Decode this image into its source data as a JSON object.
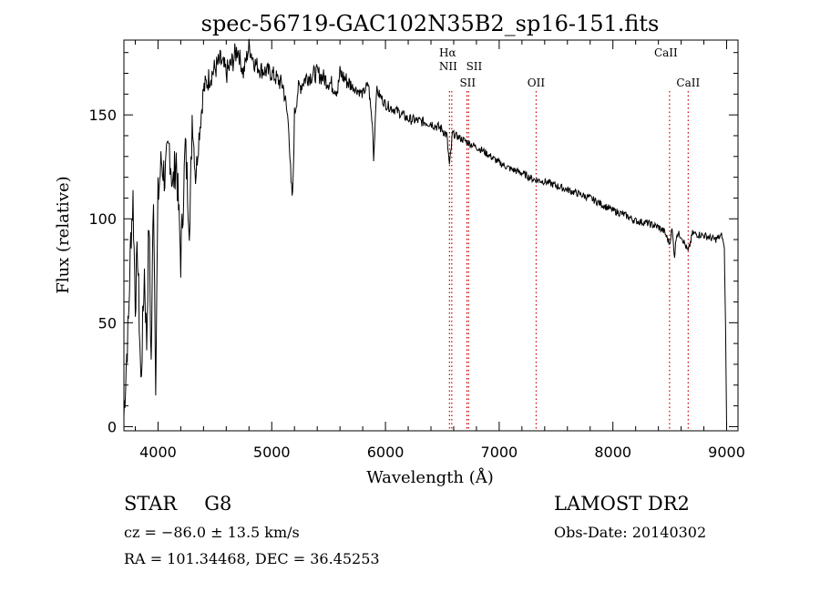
{
  "chart_data": {
    "type": "line",
    "title": "spec-56719-GAC102N35B2_sp16-151.fits",
    "xlabel": "Wavelength (Å)",
    "ylabel": "Flux (relative)",
    "xlim": [
      3700,
      9100
    ],
    "ylim": [
      -2,
      186
    ],
    "xticks": [
      4000,
      5000,
      6000,
      7000,
      8000,
      9000
    ],
    "yticks": [
      0,
      50,
      100,
      150
    ],
    "x_minor_step": 200,
    "y_minor_step": 10,
    "grid": false,
    "line_color": "#000000",
    "marker_color": "#cc0000",
    "line_markers": [
      {
        "label": "Hα",
        "wavelength": 6563
      },
      {
        "label": "NII",
        "wavelength": 6583
      },
      {
        "label": "SII",
        "wavelength": 6716
      },
      {
        "label": "SII",
        "wavelength": 6731
      },
      {
        "label": "OII",
        "wavelength": 7325
      },
      {
        "label": "CaII",
        "wavelength": 8498
      },
      {
        "label": "CaII",
        "wavelength": 8662
      }
    ],
    "series": [
      {
        "x": [
          3700,
          3720,
          3740,
          3760,
          3780,
          3800,
          3820,
          3850,
          3880,
          3900,
          3920,
          3940,
          3960,
          3980,
          4000,
          4030,
          4060,
          4100,
          4130,
          4160,
          4200,
          4240,
          4280,
          4300,
          4330,
          4360,
          4400,
          4450,
          4500,
          4550,
          4600,
          4650,
          4700,
          4750,
          4800,
          4850,
          4900,
          5000,
          5100,
          5150,
          5170,
          5184,
          5200,
          5230,
          5300,
          5400,
          5500,
          5580,
          5600,
          5700,
          5800,
          5850,
          5890,
          5896,
          5920,
          6000,
          6100,
          6200,
          6300,
          6400,
          6500,
          6540,
          6563,
          6590,
          6650,
          6750,
          6850,
          7000,
          7100,
          7200,
          7300,
          7400,
          7500,
          7600,
          7700,
          7800,
          7900,
          8000,
          8100,
          8200,
          8300,
          8400,
          8450,
          8498,
          8520,
          8542,
          8560,
          8600,
          8662,
          8700,
          8800,
          8900,
          8960,
          8980,
          8990,
          9000
        ],
        "y": [
          5,
          30,
          50,
          90,
          110,
          60,
          85,
          20,
          75,
          40,
          100,
          30,
          115,
          25,
          110,
          128,
          120,
          135,
          115,
          130,
          80,
          135,
          95,
          150,
          120,
          140,
          162,
          168,
          172,
          176,
          170,
          175,
          182,
          170,
          183,
          175,
          172,
          170,
          164,
          145,
          115,
          110,
          150,
          162,
          168,
          170,
          166,
          162,
          170,
          164,
          160,
          165,
          142,
          128,
          162,
          155,
          152,
          148,
          147,
          146,
          143,
          140,
          125,
          141,
          139,
          136,
          133,
          127,
          124,
          122,
          119,
          118,
          116,
          114,
          112,
          110,
          107,
          104,
          102,
          99,
          98,
          96,
          94,
          88,
          95,
          82,
          93,
          92,
          84,
          93,
          92,
          90,
          92,
          86,
          50,
          0
        ]
      }
    ],
    "object_class": "STAR",
    "subclass": "G8",
    "survey": "LAMOST DR2",
    "cz_line": "cz = −86.0 ± 13.5 km/s",
    "coord_line": "RA = 101.34468, DEC =  36.45253",
    "obs_date_line": "Obs-Date: 20140302"
  }
}
